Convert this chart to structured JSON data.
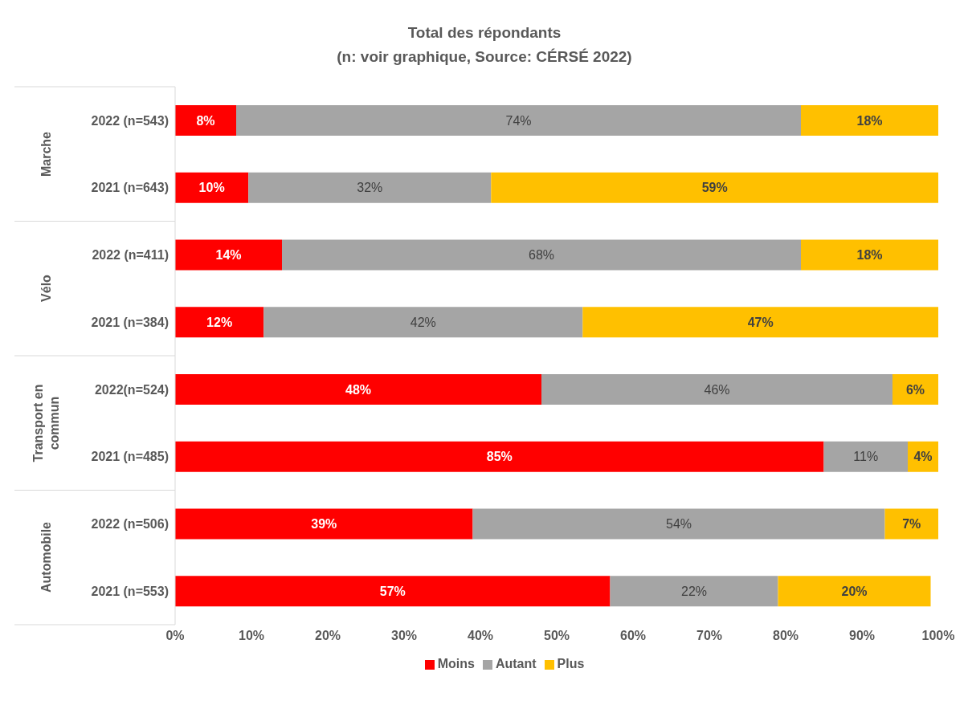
{
  "chart_data": {
    "type": "bar",
    "orientation": "horizontal",
    "stacked": true,
    "title": "Total des répondants",
    "subtitle": "(n: voir graphique, Source: CÉRSÉ 2022)",
    "categories": [
      "2022 (n=543)",
      "2021 (n=643)",
      "2022 (n=411)",
      "2021 (n=384)",
      "2022(n=524)",
      "2021 (n=485)",
      "2022 (n=506)",
      "2021 (n=553)"
    ],
    "annotations": [
      "Marche",
      "Vélo",
      "Transport en commun",
      "Automobile"
    ],
    "series": [
      {
        "name": "Moins",
        "color": "#ff0000",
        "values": [
          8,
          9.6,
          14,
          11.6,
          48,
          85,
          39,
          57
        ],
        "value_labels": [
          "8%",
          "10%",
          "14%",
          "12%",
          "48%",
          "85%",
          "39%",
          "57%"
        ]
      },
      {
        "name": "Autant",
        "color": "#a5a5a5",
        "values": [
          74,
          31.8,
          68,
          41.8,
          46,
          11,
          54,
          22
        ],
        "value_labels": [
          "74%",
          "32%",
          "68%",
          "42%",
          "46%",
          "11%",
          "54%",
          "22%"
        ]
      },
      {
        "name": "Plus",
        "color": "#ffc000",
        "values": [
          18,
          58.6,
          18,
          46.6,
          6,
          4,
          7,
          20
        ],
        "value_labels": [
          "18%",
          "59%",
          "18%",
          "47%",
          "6%",
          "4%",
          "7%",
          "20%"
        ]
      }
    ],
    "xlim": [
      0,
      100
    ],
    "xticks": [
      {
        "value": 0,
        "label": "0%"
      },
      {
        "value": 10,
        "label": "10%"
      },
      {
        "value": 20,
        "label": "20%"
      },
      {
        "value": 30,
        "label": "30%"
      },
      {
        "value": 40,
        "label": "40%"
      },
      {
        "value": 50,
        "label": "50%"
      },
      {
        "value": 60,
        "label": "60%"
      },
      {
        "value": 70,
        "label": "70%"
      },
      {
        "value": 80,
        "label": "80%"
      },
      {
        "value": 90,
        "label": "90%"
      },
      {
        "value": 100,
        "label": "100%"
      }
    ],
    "legend": "bottom"
  }
}
